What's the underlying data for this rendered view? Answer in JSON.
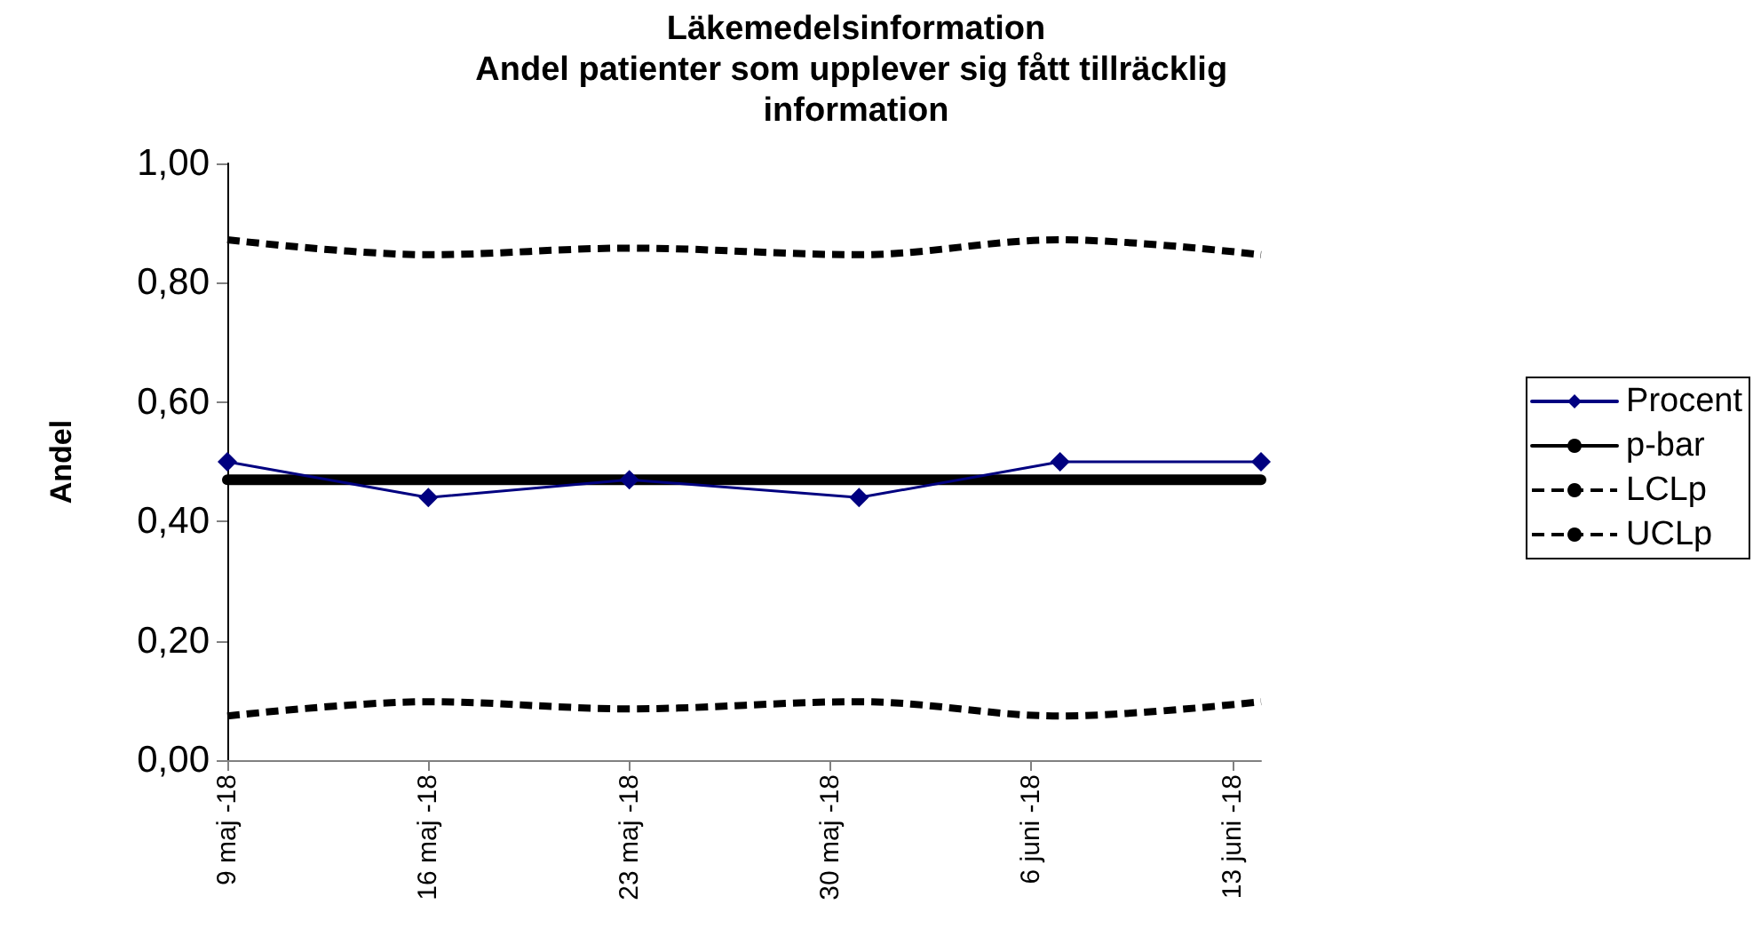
{
  "chart_data": {
    "type": "line",
    "title": "Läkemedelsinformation",
    "subtitle": "Andel patienter som upplever sig fått tillräcklig information",
    "ylabel": "Andel",
    "x": [
      "--05-09",
      "--05-16",
      "--05-23",
      "--05-31",
      "--06-07",
      "--06-14"
    ],
    "series": [
      {
        "name": "Procent",
        "color": "#000080",
        "marker": "diamond",
        "line_style": "solid",
        "values": [
          0.5,
          0.44,
          0.47,
          0.44,
          0.5,
          0.5
        ]
      },
      {
        "name": "p-bar",
        "color": "#000000",
        "marker": "none",
        "line_style": "solid",
        "values": [
          0.47,
          0.47,
          0.47,
          0.47,
          0.47,
          0.47
        ]
      },
      {
        "name": "LCLp",
        "color": "#000000",
        "marker": "none",
        "line_style": "dashed",
        "values": [
          0.074,
          0.098,
          0.086,
          0.098,
          0.074,
          0.098
        ]
      },
      {
        "name": "UCLp",
        "color": "#000000",
        "marker": "none",
        "line_style": "dashed",
        "values": [
          0.872,
          0.847,
          0.858,
          0.847,
          0.872,
          0.847
        ]
      }
    ],
    "xlim": [
      "--05-09",
      "--06-14"
    ],
    "xticks": [
      {
        "value": "--05-09",
        "label": "9 maj -18"
      },
      {
        "value": "--05-16",
        "label": "16 maj -18"
      },
      {
        "value": "--05-23",
        "label": "23 maj -18"
      },
      {
        "value": "--05-30",
        "label": "30 maj -18"
      },
      {
        "value": "--06-06",
        "label": "6 juni -18"
      },
      {
        "value": "--06-13",
        "label": "13 juni -18"
      }
    ],
    "ylim": [
      0,
      1
    ],
    "yticks": [
      {
        "value": 0,
        "label": "0,00"
      },
      {
        "value": 0.2,
        "label": "0,20"
      },
      {
        "value": 0.4,
        "label": "0,40"
      },
      {
        "value": 0.6,
        "label": "0,60"
      },
      {
        "value": 0.8,
        "label": "0,80"
      },
      {
        "value": 1,
        "label": "1,00"
      }
    ],
    "grid": false,
    "legend": "right"
  }
}
